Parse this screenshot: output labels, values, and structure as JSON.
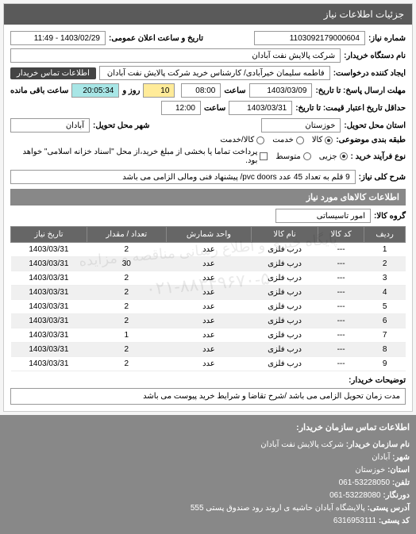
{
  "panel_title": "جزئیات اطلاعات نیاز",
  "req_number_label": "شماره نیاز:",
  "req_number": "1103092179000604",
  "public_datetime_label": "تاریخ و ساعت اعلان عمومی:",
  "public_datetime": "1403/02/29 - 11:49",
  "buyer_name_label": "نام دستگاه خریدار:",
  "buyer_name": "شرکت پالایش نفت آبادان",
  "requester_label": "ایجاد کننده درخواست:",
  "requester": "فاطمه سلیمان خیرآبادی/ کارشناس خرید شرکت پالایش نفت آبادان",
  "contact_btn": "اطلاعات تماس خریدار",
  "deadline_send_label": "مهلت ارسال پاسخ: تا تاریخ:",
  "deadline_date": "1403/03/09",
  "time_label": "ساعت",
  "deadline_time": "08:00",
  "remain_label_day": "روز و",
  "remain_day": "10",
  "remain_time": "20:05:34",
  "remain_label": "ساعت باقی مانده",
  "validity_label": "حداقل تاریخ اعتبار قیمت: تا تاریخ:",
  "validity_date": "1403/03/31",
  "validity_time": "12:00",
  "province_label": "استان محل تحویل:",
  "province": "خوزستان",
  "city_label": "شهر محل تحویل:",
  "city": "آبادان",
  "budget_label": "طبقه بندی موضوعی:",
  "budget_opts": {
    "goods": "کالا",
    "service": "خدمت",
    "rent": "کالا/خدمت"
  },
  "process_label": "نوع فرآیند خرید :",
  "process_opts": {
    "small": "جزیی",
    "medium": "متوسط",
    "cash_note": "پرداخت تماما یا بخشی از مبلغ خرید،از محل \"اسناد خزانه اسلامی\" خواهد بود."
  },
  "overall_title_label": "شرح کلی نیاز:",
  "overall_title": "9 قلم به تعداد 45 عدد pvc doors/ پیشنهاد فنی ومالی الزامی می باشد",
  "goods_section": "اطلاعات کالاهای مورد نیاز",
  "group_label": "گروه کالا:",
  "group_value": "امور تاسیساتی",
  "table": {
    "columns": [
      "ردیف",
      "کد کالا",
      "نام کالا",
      "واحد شمارش",
      "تعداد / مقدار",
      "تاریخ نیاز"
    ],
    "rows": [
      [
        "1",
        "---",
        "درب فلزی",
        "عدد",
        "2",
        "1403/03/31"
      ],
      [
        "2",
        "---",
        "درب فلزی",
        "عدد",
        "30",
        "1403/03/31"
      ],
      [
        "3",
        "---",
        "درب فلزی",
        "عدد",
        "2",
        "1403/03/31"
      ],
      [
        "4",
        "---",
        "درب فلزی",
        "عدد",
        "2",
        "1403/03/31"
      ],
      [
        "5",
        "---",
        "درب فلزی",
        "عدد",
        "2",
        "1403/03/31"
      ],
      [
        "6",
        "---",
        "درب فلزی",
        "عدد",
        "2",
        "1403/03/31"
      ],
      [
        "7",
        "---",
        "درب فلزی",
        "عدد",
        "1",
        "1403/03/31"
      ],
      [
        "8",
        "---",
        "درب فلزی",
        "عدد",
        "2",
        "1403/03/31"
      ],
      [
        "9",
        "---",
        "درب فلزی",
        "عدد",
        "2",
        "1403/03/31"
      ]
    ]
  },
  "watermark1": "پایگاه خبری و اطلاع رسانی مناقصه و مزایده",
  "watermark2": "۰۲۱-۸۸۳۴۹۶۷۰-۵",
  "buyer_desc_label": "توضیحات خریدار:",
  "buyer_desc": "مدت زمان تحویل الزامی می باشد /شرح تقاضا و شرایط خرید پیوست می باشد",
  "footer": {
    "title": "اطلاعات تماس سازمان خریدار:",
    "org_label": "نام سازمان خریدار:",
    "org": "شرکت پالایش نفت آبادان",
    "city_label": "شهر:",
    "city": "آبادان",
    "province_label": "استان:",
    "province": "خوزستان",
    "phone_label": "تلفن:",
    "phone": "53228050-061",
    "fax_label": "دورنگار:",
    "fax": "53228080-061",
    "addr_label": "آدرس پستی:",
    "addr": "پالایشگاه آبادان حاشیه ی اروند رود صندوق پستی 555",
    "postal_label": "کد پستی:",
    "postal": "6316953111"
  }
}
